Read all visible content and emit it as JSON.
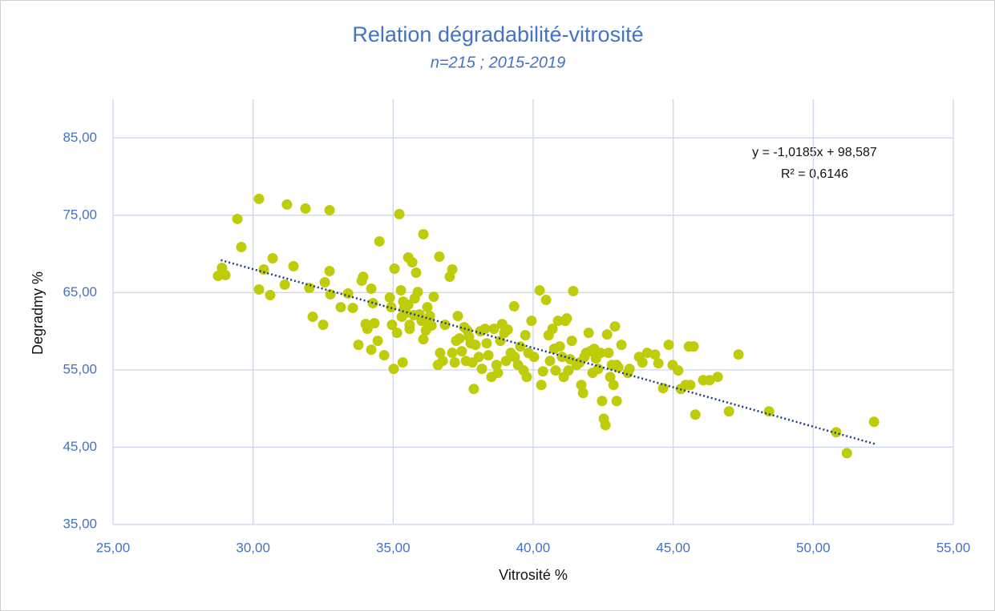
{
  "chart_data": {
    "type": "scatter",
    "title": "Relation dégradabilité-vitrosité",
    "subtitle": "n=215 ; 2015-2019",
    "x_label": "Vitrosité %",
    "y_label": "Degradmy %",
    "color": "#bfcc0a",
    "grid": true,
    "xlim": [
      25,
      55
    ],
    "ylim": [
      35,
      90
    ],
    "xticks": [
      {
        "value": 25,
        "label": "25,00"
      },
      {
        "value": 30,
        "label": "30,00"
      },
      {
        "value": 35,
        "label": "35,00"
      },
      {
        "value": 40,
        "label": "40,00"
      },
      {
        "value": 45,
        "label": "45,00"
      },
      {
        "value": 50,
        "label": "50,00"
      },
      {
        "value": 55,
        "label": "55,00"
      }
    ],
    "yticks": [
      {
        "value": 35,
        "label": "35,00"
      },
      {
        "value": 45,
        "label": "45,00"
      },
      {
        "value": 55,
        "label": "55,00"
      },
      {
        "value": 65,
        "label": "65,00"
      },
      {
        "value": 75,
        "label": "75,00"
      },
      {
        "value": 85,
        "label": "85,00"
      }
    ],
    "x": [
      28.75,
      28.89,
      29.01,
      29.44,
      29.58,
      30.21,
      30.21,
      30.38,
      30.61,
      30.7,
      31.13,
      31.21,
      31.44,
      31.87,
      32.01,
      32.13,
      32.5,
      32.56,
      32.73,
      32.73,
      32.76,
      33.13,
      33.39,
      33.56,
      33.76,
      33.88,
      33.93,
      34.02,
      34.08,
      34.22,
      34.28,
      34.33,
      34.45,
      34.51,
      34.68,
      34.88,
      34.93,
      34.96,
      35.05,
      35.14,
      35.22,
      35.28,
      35.31,
      35.34,
      35.39,
      35.45,
      35.54,
      35.59,
      35.59,
      35.68,
      35.74,
      35.82,
      35.88,
      35.94,
      36.02,
      36.08,
      36.08,
      36.17,
      36.22,
      36.31,
      36.37,
      36.6,
      36.65,
      36.68,
      36.77,
      36.85,
      37.02,
      37.11,
      37.2,
      37.25,
      37.31,
      37.37,
      37.45,
      37.54,
      37.6,
      37.65,
      37.71,
      37.77,
      37.83,
      37.88,
      37.94,
      38.06,
      38.11,
      38.17,
      38.28,
      38.34,
      38.4,
      38.51,
      38.6,
      38.69,
      38.74,
      38.83,
      38.89,
      38.97,
      39.03,
      39.09,
      39.2,
      39.32,
      39.34,
      39.46,
      39.54,
      39.66,
      39.72,
      39.77,
      39.83,
      39.94,
      40.03,
      40.23,
      40.29,
      40.35,
      40.46,
      40.55,
      40.6,
      40.69,
      40.75,
      40.8,
      40.89,
      40.95,
      41.03,
      41.09,
      41.15,
      41.2,
      41.26,
      41.32,
      41.38,
      41.43,
      41.55,
      41.66,
      41.72,
      41.78,
      41.83,
      41.89,
      41.98,
      42.04,
      42.12,
      42.18,
      42.24,
      42.32,
      42.41,
      42.46,
      42.52,
      42.58,
      42.64,
      42.69,
      42.75,
      42.81,
      42.87,
      42.92,
      42.98,
      42.98,
      43.04,
      43.15,
      43.38,
      43.44,
      43.78,
      43.9,
      44.07,
      44.35,
      44.47,
      44.64,
      44.84,
      44.98,
      45.18,
      45.27,
      45.44,
      45.56,
      45.61,
      45.73,
      45.79,
      46.07,
      46.3,
      46.59,
      46.99,
      47.33,
      48.42,
      50.82,
      51.2,
      52.17,
      34.22,
      35.02,
      36.22,
      36.45,
      37.11,
      35.36,
      35.54,
      35.77
    ],
    "values": [
      67.16,
      68.2,
      67.26,
      74.52,
      70.89,
      77.12,
      65.4,
      67.99,
      64.67,
      69.44,
      66.02,
      76.39,
      68.4,
      75.87,
      65.6,
      61.87,
      60.83,
      66.33,
      67.78,
      75.66,
      64.77,
      63.11,
      64.88,
      63.01,
      58.24,
      66.54,
      67.05,
      60.93,
      60.31,
      65.5,
      63.63,
      61.04,
      58.76,
      71.62,
      56.89,
      64.36,
      63.11,
      60.83,
      68.09,
      59.79,
      75.15,
      65.29,
      61.87,
      55.96,
      62.91,
      62.39,
      69.54,
      60.83,
      60.31,
      68.92,
      62.08,
      67.57,
      65.08,
      62.18,
      61.35,
      72.55,
      58.96,
      60.1,
      61.35,
      61.97,
      60.73,
      55.64,
      69.65,
      57.2,
      56.16,
      60.83,
      67.05,
      57.2,
      55.96,
      58.76,
      61.97,
      59.07,
      57.41,
      60.52,
      56.16,
      60.1,
      59.27,
      58.44,
      55.96,
      52.53,
      58.24,
      56.68,
      60.0,
      55.13,
      60.31,
      58.44,
      56.89,
      54.09,
      60.31,
      55.64,
      54.61,
      58.76,
      60.93,
      59.79,
      56.16,
      60.21,
      57.2,
      63.22,
      56.68,
      55.64,
      58.03,
      54.92,
      59.48,
      54.09,
      57.2,
      61.35,
      56.68,
      65.29,
      53.05,
      54.81,
      64.05,
      59.48,
      56.16,
      60.31,
      57.72,
      54.92,
      61.35,
      58.03,
      56.68,
      54.09,
      61.35,
      61.66,
      54.92,
      56.37,
      58.76,
      65.19,
      55.64,
      55.96,
      53.05,
      52.01,
      56.68,
      57.2,
      59.79,
      57.41,
      54.61,
      57.72,
      56.47,
      55.13,
      57.2,
      50.98,
      48.69,
      47.86,
      59.59,
      57.2,
      54.09,
      55.64,
      53.05,
      60.62,
      55.64,
      50.98,
      55.33,
      58.24,
      54.61,
      55.13,
      56.68,
      55.96,
      57.2,
      56.99,
      55.85,
      52.64,
      58.24,
      55.64,
      54.92,
      52.53,
      53.05,
      58.03,
      53.05,
      58.03,
      49.21,
      53.67,
      53.67,
      54.09,
      49.63,
      56.99,
      49.63,
      46.93,
      44.23,
      48.28,
      57.61,
      55.13,
      63.11,
      64.46,
      67.99,
      63.84,
      63.42,
      64.25
    ],
    "trendline": {
      "color": "#1f3a8a",
      "x": [
        28.85,
        52.2
      ],
      "values": [
        69.2,
        45.42
      ],
      "equation": "y = -1,0185x + 98,587",
      "r_squared": "R² = 0,6146"
    }
  }
}
